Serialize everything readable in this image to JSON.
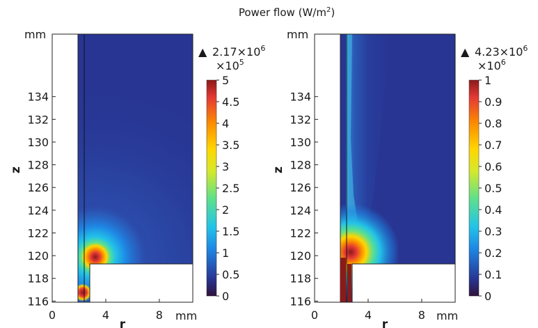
{
  "chart_data": {
    "type": "heatmap",
    "title_main": "Power flow (W/m",
    "title_sup": "2",
    "title_close": ")",
    "colormap": [
      "#30123b",
      "#283593",
      "#1e88e5",
      "#22c3e8",
      "#5ee08c",
      "#d6e92b",
      "#ffd600",
      "#fb8c00",
      "#e53935",
      "#8b1a1a"
    ],
    "panels": [
      {
        "id": "left",
        "x_unit": "mm",
        "y_unit": "mm",
        "xlabel": "r",
        "ylabel": "z",
        "xticks": [
          "0",
          "4",
          "8"
        ],
        "yticks": [
          "116",
          "118",
          "120",
          "122",
          "124",
          "126",
          "128",
          "130",
          "132",
          "134"
        ],
        "xlim": [
          0,
          10.5
        ],
        "ylim": [
          115.9,
          139.5
        ],
        "max_marker": "▲",
        "max_base": "2.17×10",
        "max_exp": "6",
        "cb_scale_base": "×10",
        "cb_scale_exp": "5",
        "colorbar_ticks": [
          "0",
          "0.5",
          "1",
          "1.5",
          "2",
          "2.5",
          "3",
          "3.5",
          "4",
          "4.5",
          "5"
        ],
        "colorbar_range": [
          0,
          5
        ]
      },
      {
        "id": "right",
        "x_unit": "mm",
        "y_unit": "mm",
        "xlabel": "r",
        "ylabel": "z",
        "xticks": [
          "0",
          "4",
          "8"
        ],
        "yticks": [
          "116",
          "118",
          "120",
          "122",
          "124",
          "126",
          "128",
          "130",
          "132",
          "134"
        ],
        "xlim": [
          0,
          10.5
        ],
        "ylim": [
          115.9,
          139.5
        ],
        "max_marker": "▲",
        "max_base": "4.23×10",
        "max_exp": "6",
        "cb_scale_base": "×10",
        "cb_scale_exp": "6",
        "colorbar_ticks": [
          "0",
          "0.1",
          "0.2",
          "0.3",
          "0.4",
          "0.5",
          "0.6",
          "0.7",
          "0.8",
          "0.9",
          "1"
        ],
        "colorbar_range": [
          0,
          1
        ]
      }
    ]
  }
}
